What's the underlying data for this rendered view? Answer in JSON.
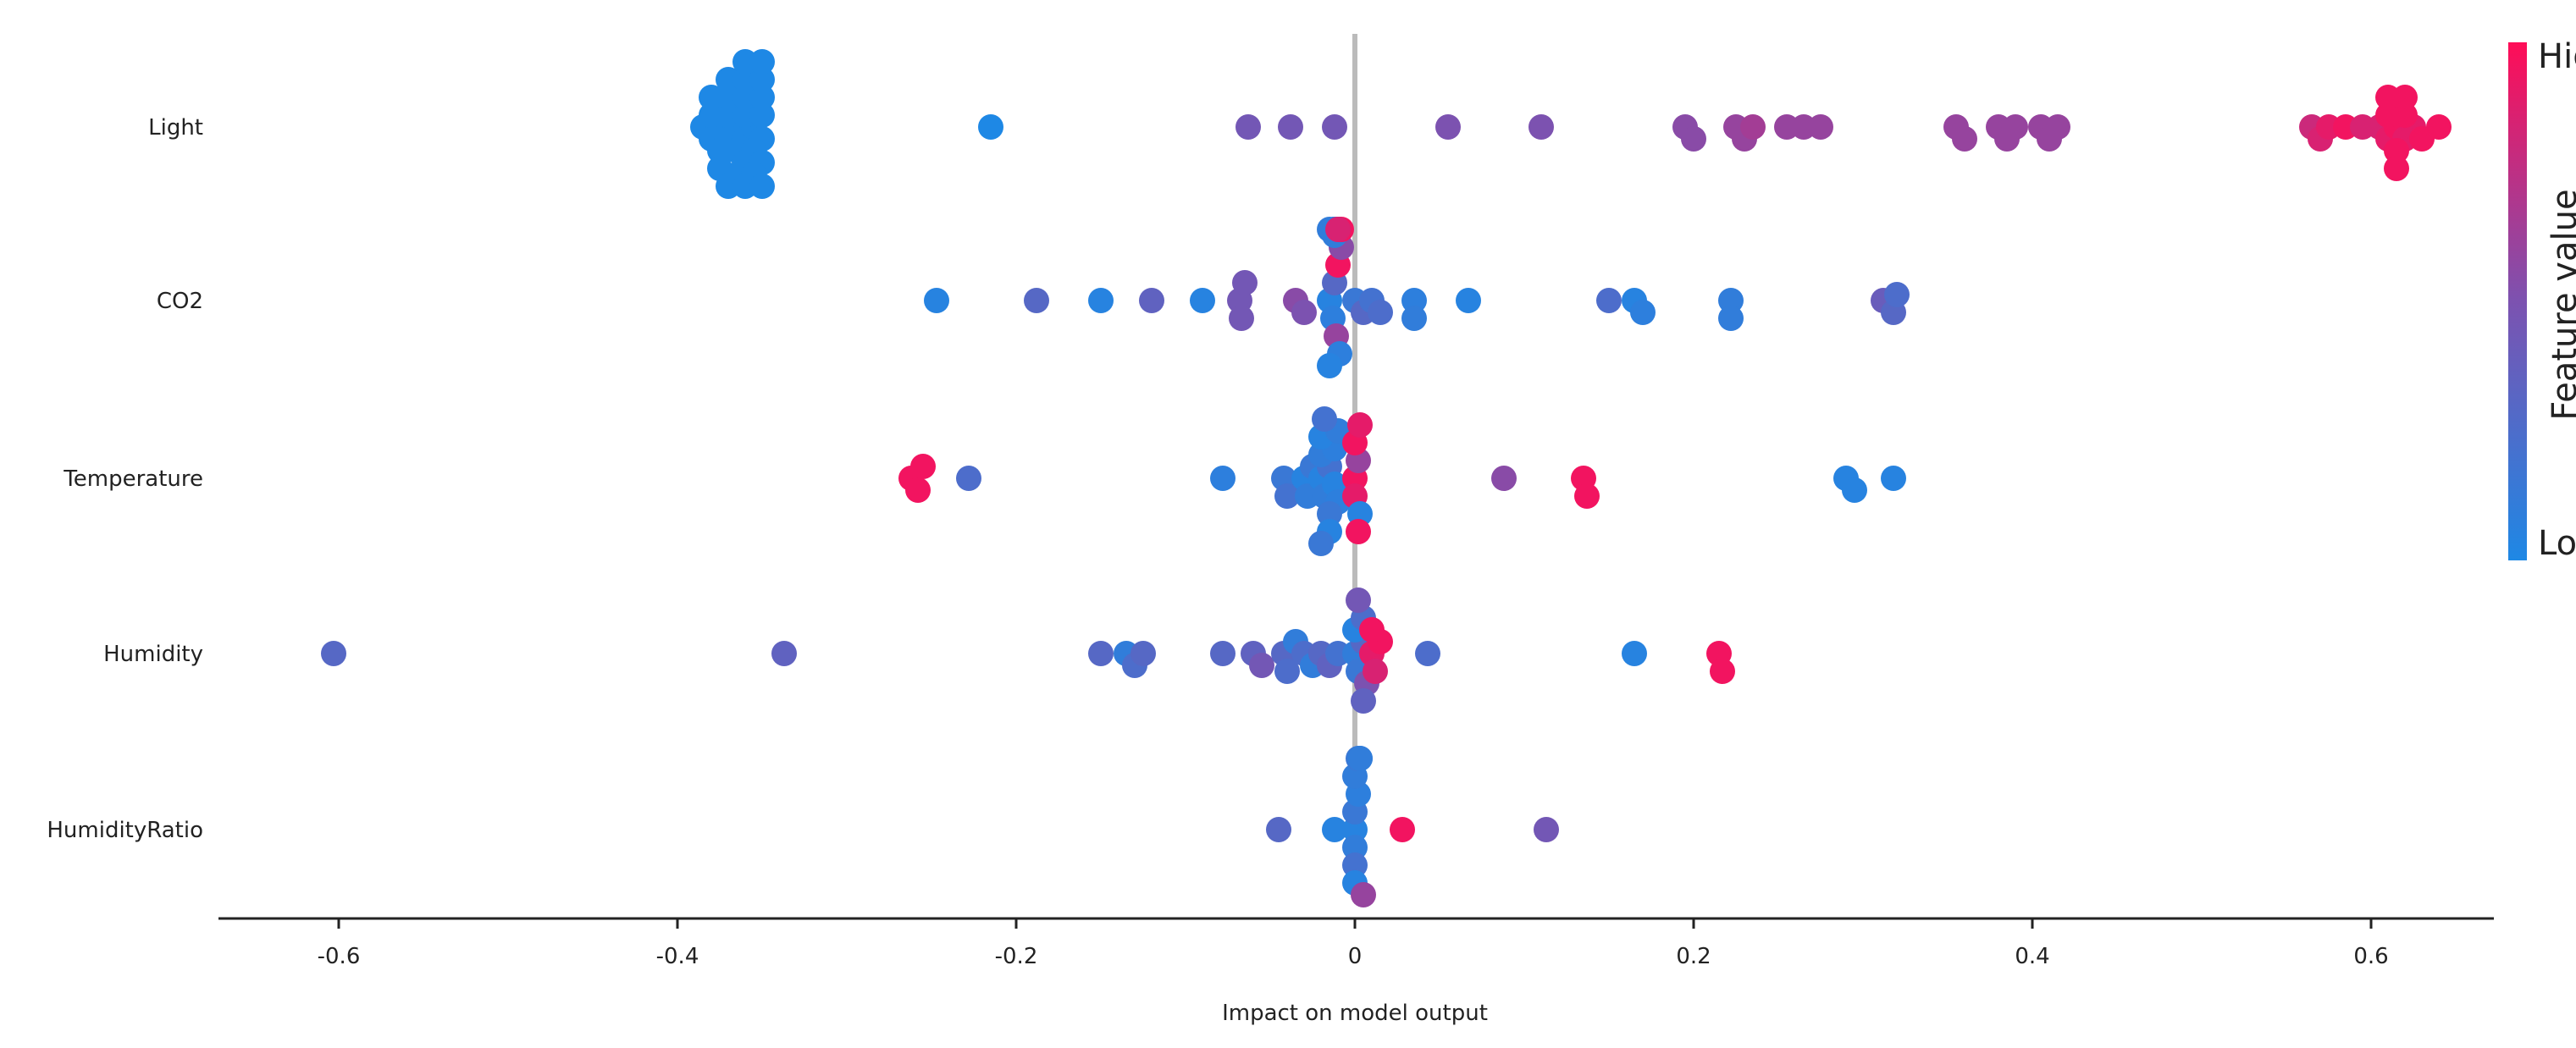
{
  "chart_data": {
    "type": "scatter",
    "subtype": "shap-beeswarm",
    "title": "",
    "xlabel": "Impact on model output",
    "ylabel": "",
    "xlim": [
      -0.67,
      0.67
    ],
    "xticks": [
      -0.6,
      -0.4,
      -0.2,
      0,
      0.2,
      0.4,
      0.6
    ],
    "xtick_labels": [
      "-0.6",
      "-0.4",
      "-0.2",
      "0",
      "0.2",
      "0.4",
      "0.6"
    ],
    "colorbar": {
      "label": "Feature value",
      "high_label": "High",
      "low_label": "Low",
      "high_color": "#ff0d57",
      "low_color": "#1e88e5"
    },
    "features": [
      {
        "name": "Light",
        "points": [
          [
            -0.385,
            0.0
          ],
          [
            -0.38,
            0.0
          ],
          [
            -0.375,
            0.0
          ],
          [
            -0.37,
            0.0
          ],
          [
            -0.365,
            0.0
          ],
          [
            -0.36,
            0.0
          ],
          [
            -0.355,
            0.0
          ],
          [
            -0.35,
            0.0
          ],
          [
            -0.38,
            0.0
          ],
          [
            -0.375,
            0.0
          ],
          [
            -0.37,
            0.0
          ],
          [
            -0.365,
            0.0
          ],
          [
            -0.36,
            0.0
          ],
          [
            -0.355,
            0.0
          ],
          [
            -0.35,
            0.0
          ],
          [
            -0.37,
            0.0
          ],
          [
            -0.36,
            0.0
          ],
          [
            -0.35,
            0.0
          ],
          [
            -0.36,
            0.0
          ],
          [
            -0.35,
            0.0
          ],
          [
            -0.38,
            0.0
          ],
          [
            -0.375,
            0.0
          ],
          [
            -0.37,
            0.0
          ],
          [
            -0.365,
            0.0
          ],
          [
            -0.36,
            0.0
          ],
          [
            -0.355,
            0.0
          ],
          [
            -0.35,
            0.0
          ],
          [
            -0.37,
            0.0
          ],
          [
            -0.36,
            0.0
          ],
          [
            -0.35,
            0.0
          ],
          [
            -0.36,
            0.0
          ],
          [
            -0.35,
            0.0
          ],
          [
            -0.215,
            0.0
          ],
          [
            -0.063,
            0.45
          ],
          [
            -0.038,
            0.45
          ],
          [
            -0.012,
            0.45
          ],
          [
            0.055,
            0.5
          ],
          [
            0.11,
            0.5
          ],
          [
            0.195,
            0.55
          ],
          [
            0.2,
            0.55
          ],
          [
            0.225,
            0.6
          ],
          [
            0.23,
            0.6
          ],
          [
            0.235,
            0.65
          ],
          [
            0.255,
            0.6
          ],
          [
            0.265,
            0.6
          ],
          [
            0.275,
            0.6
          ],
          [
            0.355,
            0.6
          ],
          [
            0.36,
            0.6
          ],
          [
            0.38,
            0.6
          ],
          [
            0.385,
            0.6
          ],
          [
            0.39,
            0.6
          ],
          [
            0.405,
            0.6
          ],
          [
            0.41,
            0.6
          ],
          [
            0.415,
            0.6
          ],
          [
            0.565,
            0.8
          ],
          [
            0.57,
            0.85
          ],
          [
            0.575,
            0.9
          ],
          [
            0.585,
            0.95
          ],
          [
            0.595,
            0.85
          ],
          [
            0.605,
            0.85
          ],
          [
            0.61,
            0.9
          ],
          [
            0.615,
            0.95
          ],
          [
            0.62,
            0.9
          ],
          [
            0.625,
            0.9
          ],
          [
            0.63,
            0.95
          ],
          [
            0.64,
            0.95
          ],
          [
            0.61,
            0.95
          ],
          [
            0.615,
            0.95
          ],
          [
            0.62,
            0.95
          ],
          [
            0.61,
            0.95
          ],
          [
            0.615,
            0.95
          ],
          [
            0.62,
            0.95
          ]
        ]
      },
      {
        "name": "CO2",
        "points": [
          [
            -0.247,
            0.05
          ],
          [
            -0.188,
            0.3
          ],
          [
            -0.15,
            0.05
          ],
          [
            -0.12,
            0.35
          ],
          [
            -0.09,
            0.05
          ],
          [
            -0.068,
            0.45
          ],
          [
            -0.067,
            0.45
          ],
          [
            -0.065,
            0.45
          ],
          [
            -0.035,
            0.55
          ],
          [
            -0.03,
            0.5
          ],
          [
            -0.015,
            0.05
          ],
          [
            -0.013,
            0.08
          ],
          [
            -0.012,
            0.3
          ],
          [
            -0.011,
            0.6
          ],
          [
            -0.01,
            0.95
          ],
          [
            -0.009,
            0.08
          ],
          [
            -0.008,
            0.55
          ],
          [
            -0.015,
            0.05
          ],
          [
            -0.012,
            0.1
          ],
          [
            -0.01,
            0.3
          ],
          [
            -0.008,
            0.95
          ],
          [
            -0.015,
            0.1
          ],
          [
            -0.012,
            0.2
          ],
          [
            -0.01,
            0.9
          ],
          [
            -0.012,
            0.15
          ],
          [
            -0.01,
            0.9
          ],
          [
            -0.012,
            0.08
          ],
          [
            -0.01,
            0.85
          ],
          [
            0.0,
            0.15
          ],
          [
            0.005,
            0.3
          ],
          [
            0.01,
            0.2
          ],
          [
            0.015,
            0.25
          ],
          [
            0.035,
            0.08
          ],
          [
            0.035,
            0.1
          ],
          [
            0.067,
            0.05
          ],
          [
            0.15,
            0.25
          ],
          [
            0.165,
            0.05
          ],
          [
            0.17,
            0.08
          ],
          [
            0.222,
            0.1
          ],
          [
            0.222,
            0.1
          ],
          [
            0.312,
            0.4
          ],
          [
            0.318,
            0.3
          ],
          [
            0.32,
            0.25
          ]
        ]
      },
      {
        "name": "Temperature",
        "points": [
          [
            -0.262,
            0.95
          ],
          [
            -0.258,
            0.95
          ],
          [
            -0.255,
            0.95
          ],
          [
            -0.228,
            0.25
          ],
          [
            -0.078,
            0.08
          ],
          [
            -0.042,
            0.15
          ],
          [
            -0.04,
            0.2
          ],
          [
            -0.03,
            0.05
          ],
          [
            -0.028,
            0.1
          ],
          [
            -0.025,
            0.15
          ],
          [
            -0.02,
            0.05
          ],
          [
            -0.018,
            0.1
          ],
          [
            -0.015,
            0.2
          ],
          [
            -0.012,
            0.05
          ],
          [
            -0.01,
            0.08
          ],
          [
            -0.02,
            0.1
          ],
          [
            -0.015,
            0.15
          ],
          [
            -0.012,
            0.08
          ],
          [
            -0.02,
            0.05
          ],
          [
            -0.015,
            0.05
          ],
          [
            -0.01,
            0.1
          ],
          [
            -0.018,
            0.2
          ],
          [
            -0.02,
            0.15
          ],
          [
            0.0,
            0.95
          ],
          [
            0.0,
            0.9
          ],
          [
            0.002,
            0.6
          ],
          [
            0.003,
            0.05
          ],
          [
            0.0,
            0.95
          ],
          [
            0.002,
            0.95
          ],
          [
            0.003,
            0.9
          ],
          [
            0.088,
            0.55
          ],
          [
            0.135,
            0.95
          ],
          [
            0.137,
            0.95
          ],
          [
            0.29,
            0.05
          ],
          [
            0.295,
            0.05
          ],
          [
            0.318,
            0.05
          ]
        ]
      },
      {
        "name": "Humidity",
        "points": [
          [
            -0.603,
            0.3
          ],
          [
            -0.337,
            0.35
          ],
          [
            -0.15,
            0.3
          ],
          [
            -0.135,
            0.1
          ],
          [
            -0.13,
            0.25
          ],
          [
            -0.125,
            0.3
          ],
          [
            -0.078,
            0.3
          ],
          [
            -0.06,
            0.35
          ],
          [
            -0.055,
            0.45
          ],
          [
            -0.042,
            0.3
          ],
          [
            -0.04,
            0.25
          ],
          [
            -0.035,
            0.1
          ],
          [
            -0.03,
            0.25
          ],
          [
            -0.025,
            0.1
          ],
          [
            -0.02,
            0.3
          ],
          [
            -0.015,
            0.35
          ],
          [
            -0.01,
            0.2
          ],
          [
            0.0,
            0.1
          ],
          [
            0.002,
            0.15
          ],
          [
            0.005,
            0.3
          ],
          [
            0.007,
            0.5
          ],
          [
            0.01,
            0.9
          ],
          [
            0.012,
            0.85
          ],
          [
            0.015,
            0.95
          ],
          [
            0.0,
            0.05
          ],
          [
            0.005,
            0.25
          ],
          [
            0.01,
            0.95
          ],
          [
            0.005,
            0.35
          ],
          [
            0.002,
            0.45
          ],
          [
            0.043,
            0.25
          ],
          [
            0.165,
            0.05
          ],
          [
            0.215,
            0.95
          ],
          [
            0.217,
            0.95
          ]
        ]
      },
      {
        "name": "HumidityRatio",
        "points": [
          [
            -0.045,
            0.3
          ],
          [
            -0.012,
            0.05
          ],
          [
            0.0,
            0.05
          ],
          [
            0.0,
            0.1
          ],
          [
            0.0,
            0.15
          ],
          [
            0.0,
            0.2
          ],
          [
            0.002,
            0.08
          ],
          [
            0.0,
            0.05
          ],
          [
            0.0,
            0.1
          ],
          [
            0.005,
            0.6
          ],
          [
            0.003,
            0.05
          ],
          [
            0.002,
            0.15
          ],
          [
            0.003,
            0.1
          ],
          [
            0.028,
            0.95
          ],
          [
            0.113,
            0.45
          ]
        ]
      }
    ]
  }
}
